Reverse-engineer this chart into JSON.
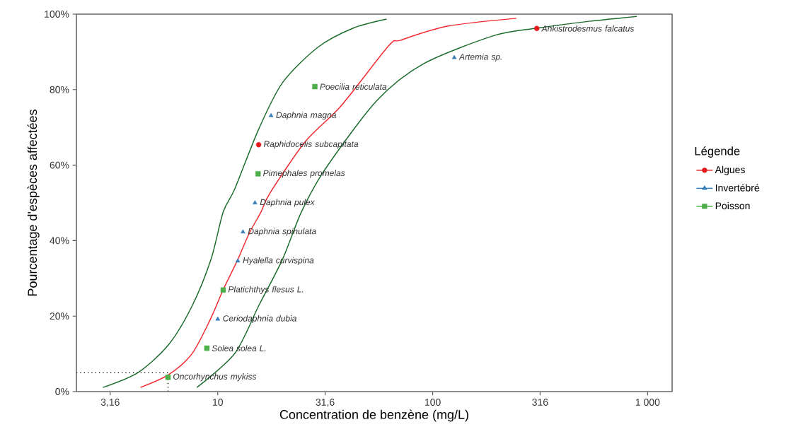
{
  "chart_data": {
    "type": "scatter",
    "xlabel": "Concentration de benzène (mg/L)",
    "ylabel": "Pourcentage d'espèces affectées",
    "legend_title": "Légende",
    "legend": "right",
    "log": "x",
    "xlim": [
      2.2,
      1300
    ],
    "xticks": [
      {
        "value": 3.16,
        "label": "3,16"
      },
      10,
      {
        "value": 31.6,
        "label": "31,6"
      },
      100,
      316,
      {
        "value": 1000,
        "label": "1 000"
      }
    ],
    "ylim": [
      0,
      100
    ],
    "yticks": [
      {
        "value": 0,
        "label": "0%"
      },
      {
        "value": 20,
        "label": "20%"
      },
      {
        "value": 40,
        "label": "40%"
      },
      {
        "value": 60,
        "label": "60%"
      },
      {
        "value": 80,
        "label": "80%"
      },
      {
        "value": 100,
        "label": "100%"
      }
    ],
    "series": [
      {
        "type": "line",
        "color": "#1b6b2c",
        "marker": "none",
        "line_style": "solid",
        "x": [
          2.92,
          4.27,
          5.92,
          7.6,
          9.3,
          10.6,
          12.0,
          15.5,
          20.0,
          29.2,
          42.7,
          61
        ],
        "values": [
          1.1,
          5.1,
          12.5,
          22.7,
          35.0,
          47.6,
          53.7,
          69.5,
          81.8,
          91.2,
          96.3,
          98.7
        ]
      },
      {
        "type": "line",
        "color": "#f0282d",
        "marker": "none",
        "line_style": "solid",
        "x": [
          4.37,
          5.92,
          7.6,
          9.3,
          10.6,
          12.4,
          14.0,
          15.9,
          17.5,
          25.6,
          37.5,
          62.4,
          71,
          117,
          245
        ],
        "values": [
          1.1,
          4.5,
          10.1,
          19.5,
          27.0,
          35.0,
          41.9,
          47.6,
          52.6,
          66.3,
          75.7,
          91.6,
          93.1,
          96.8,
          98.9
        ]
      },
      {
        "type": "line",
        "color": "#1b6b2c",
        "marker": "none",
        "line_style": "solid",
        "x": [
          8.0,
          12.0,
          15.5,
          20.0,
          24.5,
          31.5,
          54.8,
          91,
          195,
          307,
          535,
          891
        ],
        "values": [
          1.1,
          10.1,
          22.7,
          35.0,
          47.6,
          58.8,
          77.0,
          86.9,
          94.4,
          96.3,
          98.1,
          99.4
        ]
      },
      {
        "type": "line",
        "color": "#000000",
        "marker": "none",
        "line_style": "dotted",
        "x": [
          2.2,
          5.87,
          5.87
        ],
        "values": [
          5,
          5,
          0
        ]
      },
      {
        "name": "Algues",
        "color": "#e41a1c",
        "marker": "circle",
        "x": [
          15.5,
          305
        ],
        "values": [
          65.4,
          96.2
        ]
      },
      {
        "name": "Invertébré",
        "color": "#377eb8",
        "marker": "triangle",
        "x": [
          10.0,
          12.4,
          13.1,
          14.9,
          17.7,
          126
        ],
        "values": [
          19.2,
          34.6,
          42.3,
          50.0,
          73.1,
          88.5
        ]
      },
      {
        "name": "Poisson",
        "color": "#4daf4a",
        "marker": "square",
        "x": [
          5.87,
          8.9,
          10.6,
          15.4,
          28.3
        ],
        "values": [
          3.8,
          11.5,
          26.9,
          57.7,
          80.8
        ]
      }
    ],
    "annotations": [
      {
        "text": "Oncorhynchus mykiss",
        "x": 5.87,
        "y": 3.8
      },
      {
        "text": "Solea solea L.",
        "x": 8.9,
        "y": 11.5
      },
      {
        "text": "Ceriodaphnia dubia",
        "x": 10.0,
        "y": 19.2
      },
      {
        "text": "Platichthys flesus L.",
        "x": 10.6,
        "y": 26.9
      },
      {
        "text": "Hyalella curvispina",
        "x": 12.4,
        "y": 34.6
      },
      {
        "text": "Daphnia spinulata",
        "x": 13.1,
        "y": 42.3
      },
      {
        "text": "Daphnia pulex",
        "x": 14.9,
        "y": 50.0
      },
      {
        "text": "Pimephales promelas",
        "x": 15.4,
        "y": 57.7
      },
      {
        "text": "Raphidocelis subcapitata",
        "x": 15.5,
        "y": 65.4
      },
      {
        "text": "Daphnia magna",
        "x": 17.7,
        "y": 73.1
      },
      {
        "text": "Poecilia reticulata",
        "x": 28.3,
        "y": 80.8
      },
      {
        "text": "Artemia sp.",
        "x": 126,
        "y": 88.5
      },
      {
        "text": "Ankistrodesmus falcatus",
        "x": 305,
        "y": 96.2
      }
    ]
  }
}
